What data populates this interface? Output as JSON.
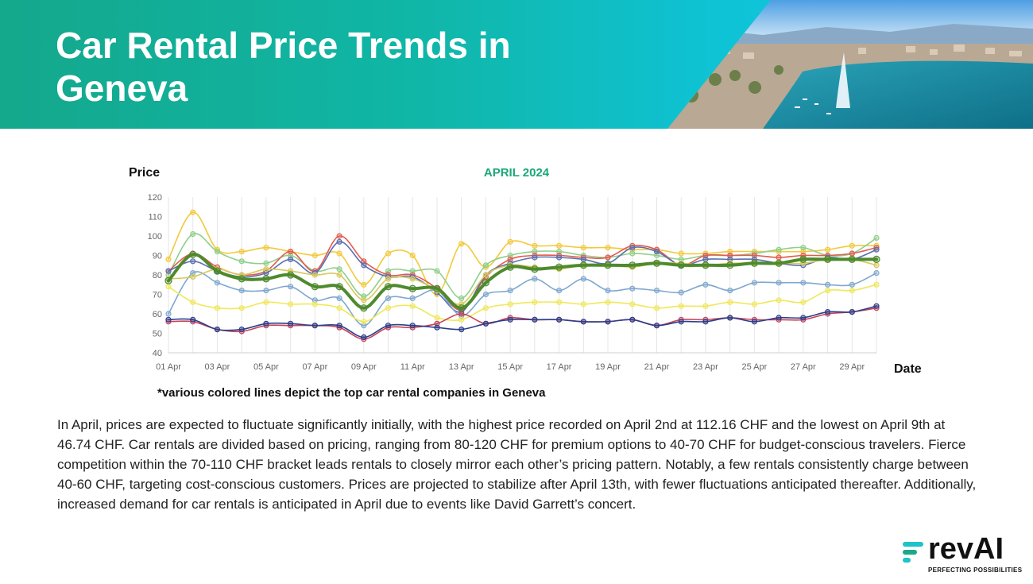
{
  "header": {
    "title": "Car Rental Price Trends in Geneva"
  },
  "colors": {
    "banner_start": "#14a88c",
    "banner_end": "#12c7e6",
    "subtitle": "#19a87a",
    "highlight_series": "#4e8a2e"
  },
  "chart_data": {
    "type": "line",
    "title": "APRIL 2024",
    "ylabel": "Price",
    "xlabel": "Date",
    "ylim": [
      40,
      120
    ],
    "yticks": [
      40,
      50,
      60,
      70,
      80,
      90,
      100,
      110,
      120
    ],
    "grid": "vertical",
    "x_tick_labels": [
      "01 Apr",
      "03 Apr",
      "05 Apr",
      "07 Apr",
      "09 Apr",
      "11 Apr",
      "13 Apr",
      "15 Apr",
      "17 Apr",
      "19 Apr",
      "21 Apr",
      "23 Apr",
      "25 Apr",
      "27 Apr",
      "29 Apr"
    ],
    "x": [
      "01 Apr",
      "02 Apr",
      "03 Apr",
      "04 Apr",
      "05 Apr",
      "06 Apr",
      "07 Apr",
      "08 Apr",
      "09 Apr",
      "10 Apr",
      "11 Apr",
      "12 Apr",
      "13 Apr",
      "14 Apr",
      "15 Apr",
      "16 Apr",
      "17 Apr",
      "18 Apr",
      "19 Apr",
      "20 Apr",
      "21 Apr",
      "22 Apr",
      "23 Apr",
      "24 Apr",
      "25 Apr",
      "26 Apr",
      "27 Apr",
      "28 Apr",
      "29 Apr",
      "30 Apr"
    ],
    "series": [
      {
        "color": "#f3c93a",
        "width": 1.6,
        "values": [
          88,
          112.16,
          93,
          92,
          94,
          92,
          90,
          91,
          75,
          91,
          90,
          70,
          96,
          84,
          97,
          95,
          95,
          94,
          94,
          93,
          93,
          91,
          91,
          92,
          92,
          92,
          92,
          93,
          95,
          95
        ]
      },
      {
        "color": "#8fcf8a",
        "width": 1.6,
        "values": [
          80,
          101,
          92,
          87,
          86,
          90,
          82,
          83,
          69,
          82,
          82,
          82,
          68,
          85,
          90,
          92,
          92,
          90,
          89,
          91,
          90,
          88,
          90,
          90,
          91,
          93,
          94,
          90,
          91,
          99
        ]
      },
      {
        "color": "#e35b4f",
        "width": 1.6,
        "values": [
          82,
          91,
          84,
          80,
          82,
          92,
          82,
          100,
          87,
          80,
          80,
          73,
          62,
          79,
          88,
          90,
          90,
          89,
          89,
          95,
          93,
          85,
          90,
          90,
          90,
          89,
          90,
          90,
          91,
          94
        ]
      },
      {
        "color": "#5a6fb0",
        "width": 1.6,
        "values": [
          82,
          87,
          82,
          79,
          81,
          88,
          81,
          97,
          85,
          79,
          79,
          71,
          61,
          80,
          86,
          89,
          89,
          88,
          86,
          94,
          92,
          85,
          88,
          88,
          88,
          86,
          85,
          89,
          88,
          93
        ]
      },
      {
        "color": "#7fa8cf",
        "width": 1.6,
        "values": [
          60,
          81,
          76,
          72,
          72,
          74,
          67,
          68,
          54,
          68,
          68,
          72,
          59,
          70,
          72,
          78,
          72,
          78,
          72,
          73,
          72,
          71,
          75,
          72,
          76,
          76,
          76,
          75,
          75,
          81
        ]
      },
      {
        "color": "#d8c95a",
        "width": 1.6,
        "values": [
          78,
          79,
          83,
          80,
          83,
          82,
          80,
          80,
          67,
          78,
          78,
          72,
          65,
          80,
          85,
          84,
          83,
          85,
          85,
          84,
          86,
          86,
          85,
          86,
          86,
          86,
          86,
          88,
          88,
          85
        ]
      },
      {
        "color": "#f0e85a",
        "width": 1.6,
        "values": [
          74,
          66,
          63,
          63,
          66,
          65,
          65,
          63,
          56,
          63,
          64,
          58,
          57,
          63,
          65,
          66,
          66,
          65,
          66,
          65,
          63,
          64,
          64,
          66,
          65,
          67,
          66,
          72,
          72,
          75
        ]
      },
      {
        "color": "#c7435a",
        "width": 1.6,
        "values": [
          56,
          56,
          52,
          51,
          54,
          54,
          54,
          53,
          47,
          53,
          53,
          55,
          60,
          55,
          58,
          57,
          57,
          56,
          56,
          57,
          54,
          57,
          57,
          58,
          57,
          57,
          57,
          60,
          61,
          63
        ]
      },
      {
        "color": "#2c3e8a",
        "width": 1.6,
        "values": [
          57,
          57,
          52,
          52,
          55,
          55,
          54,
          54,
          48,
          54,
          54,
          53,
          52,
          55,
          57,
          57,
          57,
          56,
          56,
          57,
          54,
          56,
          56,
          58,
          56,
          58,
          58,
          61,
          61,
          64
        ]
      },
      {
        "color": "#4e8a2e",
        "width": 4,
        "values": [
          77,
          90.5,
          82,
          78,
          78,
          80,
          74,
          74,
          63,
          74,
          73,
          73,
          63,
          76,
          84,
          83,
          84,
          85,
          85,
          85,
          86,
          85,
          85,
          85,
          86,
          86,
          88,
          88,
          88,
          88
        ]
      }
    ]
  },
  "note": "*various colored lines depict the top car rental companies in Geneva",
  "description": "In April, prices are expected to fluctuate significantly initially, with the highest price recorded on April 2nd at 112.16 CHF and the lowest on April 9th at 46.74 CHF. Car rentals are divided based on pricing, ranging from 80-120 CHF for premium options to 40-70 CHF for budget-conscious travelers. Fierce competition within the 70-110 CHF bracket leads rentals to closely mirror each other’s pricing pattern. Notably, a few rentals consistently charge between 40-60 CHF, targeting cost-conscious customers. Prices are projected to stabilize after April 13th, with fewer fluctuations anticipated thereafter. Additionally, increased demand for car rentals is anticipated in April due to events like David Garrett’s concert.",
  "logo": {
    "word": "revAI",
    "tagline": "PERFECTING POSSIBILITIES"
  }
}
